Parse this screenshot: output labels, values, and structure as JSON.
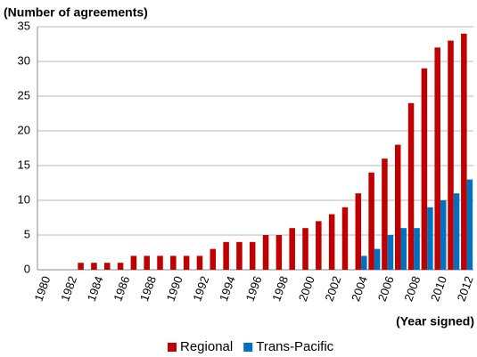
{
  "chart_data": {
    "type": "bar",
    "y_axis_label": "(Number of agreements)",
    "x_axis_label": "(Year signed)",
    "categories": [
      "1980",
      null,
      "1982",
      null,
      "1984",
      null,
      "1986",
      null,
      "1988",
      null,
      "1990",
      null,
      "1992",
      null,
      "1994",
      null,
      "1996",
      null,
      "1998",
      null,
      "2000",
      null,
      "2002",
      null,
      "2004",
      null,
      "2006",
      null,
      "2008",
      null,
      "2010",
      null,
      "2012"
    ],
    "series": [
      {
        "name": "Regional",
        "color": "#c00000",
        "values": [
          0,
          0,
          0,
          1,
          1,
          1,
          1,
          2,
          2,
          2,
          2,
          2,
          2,
          3,
          4,
          4,
          4,
          5,
          5,
          6,
          6,
          7,
          8,
          9,
          11,
          14,
          16,
          18,
          24,
          29,
          32,
          33,
          34
        ]
      },
      {
        "name": "Trans-Pacific",
        "color": "#0070c0",
        "values": [
          0,
          0,
          0,
          0,
          0,
          0,
          0,
          0,
          0,
          0,
          0,
          0,
          0,
          0,
          0,
          0,
          0,
          0,
          0,
          0,
          0,
          0,
          0,
          0,
          2,
          3,
          5,
          6,
          6,
          9,
          10,
          11,
          13
        ]
      }
    ],
    "ylim": [
      0,
      35
    ],
    "yticks": [
      0,
      5,
      10,
      15,
      20,
      25,
      30,
      35
    ],
    "grid": true,
    "legend": "bottom"
  }
}
